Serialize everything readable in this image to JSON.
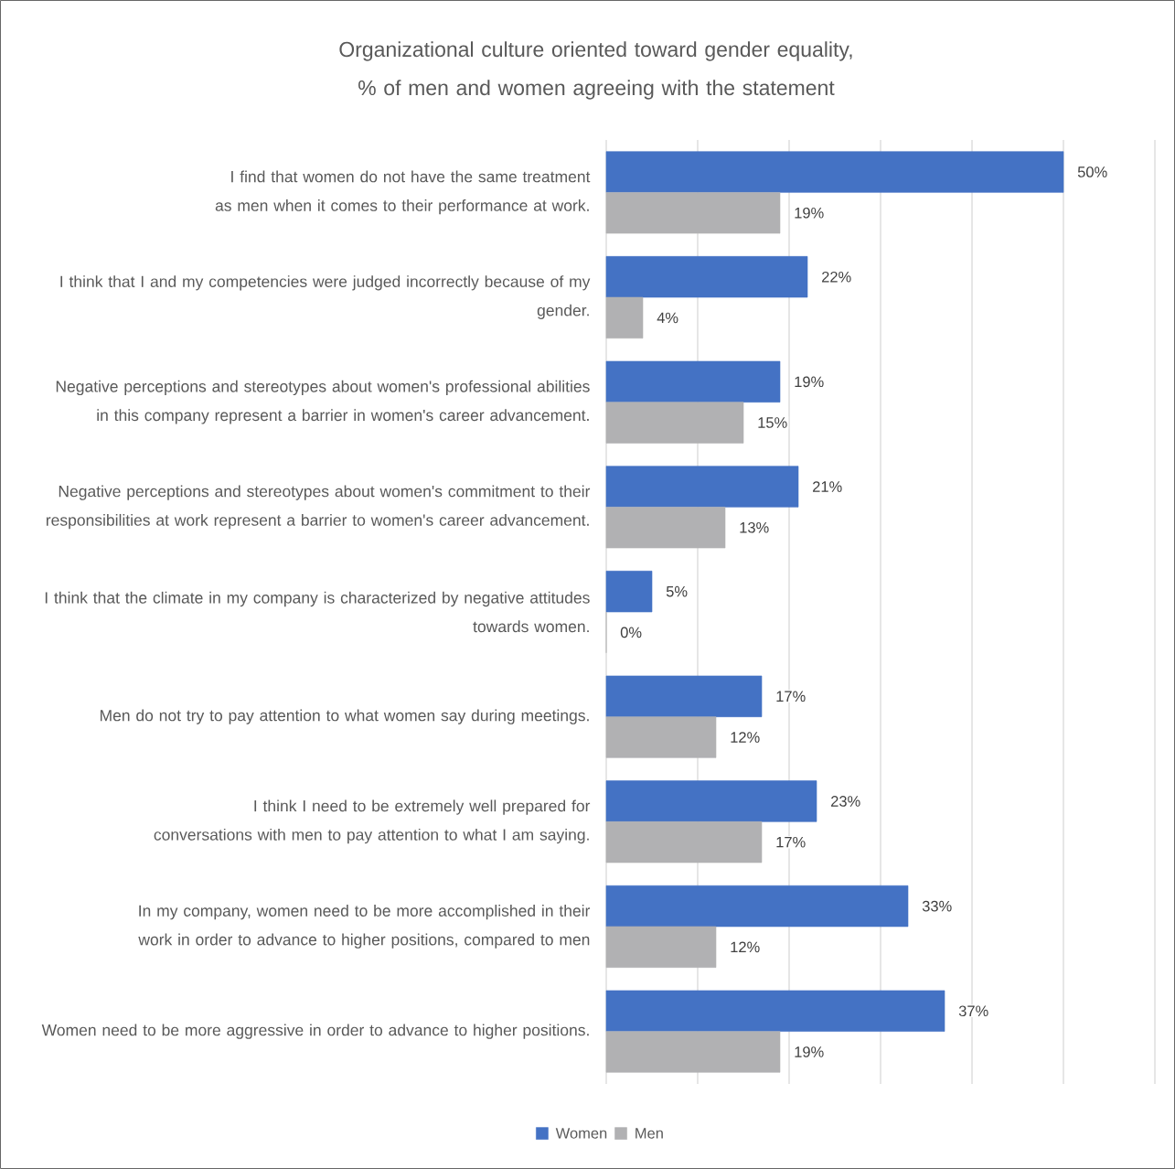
{
  "chart_data": {
    "type": "bar",
    "orientation": "horizontal",
    "title": "Organizational culture oriented toward gender equality, % of men and women agreeing with the statement",
    "categories": [
      "I find that women do not have the same treatment as men when it comes to their performance at work.",
      "I think that I and my competencies were judged incorrectly because of my gender.",
      "Negative perceptions and stereotypes about women's professional abilities in this company represent a barrier in women's career advancement.",
      "Negative perceptions and stereotypes about women's commitment to their responsibilities at work represent a barrier to women's career advancement.",
      "I think that the climate in my company is characterized by negative attitudes towards women.",
      "Men do not try to pay attention to what women say during meetings.",
      "I think I need to be extremely well prepared for conversations with men to pay attention to what I am saying.",
      "In my company, women need to be more accomplished in their work in order to advance to higher positions, compared to men",
      "Women need to be more aggressive in order to advance to higher positions."
    ],
    "series": [
      {
        "name": "Women",
        "color": "#4472c4",
        "values": [
          50,
          22,
          19,
          21,
          5,
          17,
          23,
          33,
          37
        ],
        "value_labels": [
          "50%",
          "22%",
          "19%",
          "21%",
          "5%",
          "17%",
          "23%",
          "33%",
          "37%"
        ]
      },
      {
        "name": "Men",
        "color": "#b1b1b3",
        "values": [
          19,
          4,
          15,
          13,
          0,
          12,
          17,
          12,
          19
        ],
        "value_labels": [
          "19%",
          "4%",
          "15%",
          "13%",
          "0%",
          "12%",
          "17%",
          "12%",
          "19%"
        ]
      }
    ],
    "xlim": [
      0,
      60
    ],
    "xticks": [
      {
        "value": 0,
        "label": null
      },
      {
        "value": 10,
        "label": null
      },
      {
        "value": 20,
        "label": null
      },
      {
        "value": 30,
        "label": null
      },
      {
        "value": 40,
        "label": null
      },
      {
        "value": 50,
        "label": null
      },
      {
        "value": 60,
        "label": null
      }
    ],
    "tick_labels": "y",
    "grid": "x",
    "legend": "bottom"
  }
}
